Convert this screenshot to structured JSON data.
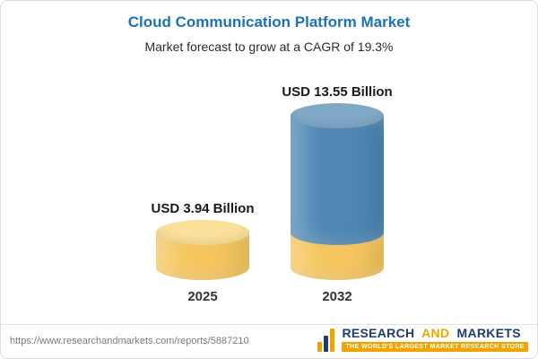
{
  "banner": {
    "title": "Cloud Communication Platform Market",
    "subtitle": "Market forecast to grow at a CAGR of 19.3%",
    "accent_color": "#1b72b8"
  },
  "chart_data": {
    "type": "bar",
    "variant": "3d-cylinder",
    "title": "Cloud Communication Platform Market",
    "subtitle": "Market forecast to grow at a CAGR of 19.3%",
    "categories": [
      "2025",
      "2032"
    ],
    "values": [
      3.94,
      13.55
    ],
    "unit": "USD Billion",
    "value_labels": [
      "USD 3.94 Billion",
      "USD 13.55 Billion"
    ],
    "cagr_percent": 19.3,
    "ylim": [
      0,
      14
    ],
    "grid": false,
    "legend": false,
    "bar_colors": [
      "#f6c75f",
      "#4e87b4"
    ],
    "bar_top_colors": [
      "#fbe09a",
      "#7fa9c7"
    ],
    "base_overlay": {
      "bar": "2032",
      "value": 3.94,
      "color": "#f6c75f"
    }
  },
  "footer": {
    "url": "https://www.researchandmarkets.com/reports/5887210",
    "logo": {
      "word_research": "RESEARCH",
      "word_and": "AND",
      "word_markets": "MARKETS",
      "tagline": "THE WORLD'S LARGEST MARKET RESEARCH STORE",
      "navy": "#1e3c6e",
      "gold": "#f0a402"
    }
  }
}
